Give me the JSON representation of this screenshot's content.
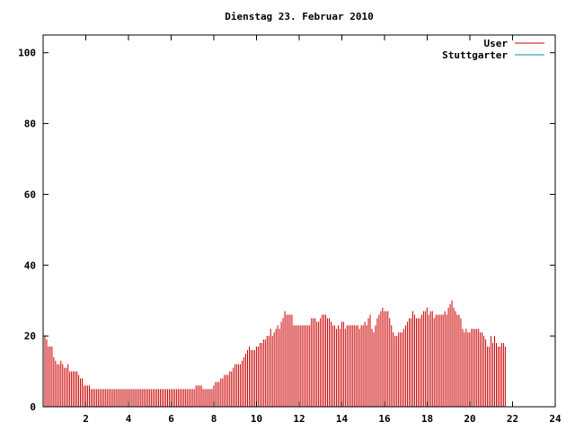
{
  "chart_data": {
    "type": "bar",
    "title": "Dienstag 23. Februar 2010",
    "xlabel": "",
    "ylabel": "",
    "xlim": [
      0,
      24
    ],
    "ylim": [
      0,
      105
    ],
    "x_ticks": [
      2,
      4,
      6,
      8,
      10,
      12,
      14,
      16,
      18,
      20,
      22,
      24
    ],
    "y_ticks": [
      0,
      20,
      40,
      60,
      80,
      100
    ],
    "grid": false,
    "legend_position": "top-right",
    "series": [
      {
        "name": "User",
        "color": "#cc0000",
        "x_start": 0,
        "x_step": 0.0833,
        "values": [
          20,
          20,
          19,
          17,
          17,
          17,
          14,
          13,
          12,
          12,
          13,
          12,
          11,
          11,
          12,
          10,
          10,
          10,
          10,
          10,
          9,
          8,
          8,
          6,
          6,
          6,
          6,
          5,
          5,
          5,
          5,
          5,
          5,
          5,
          5,
          5,
          5,
          5,
          5,
          5,
          5,
          5,
          5,
          5,
          5,
          5,
          5,
          5,
          5,
          5,
          5,
          5,
          5,
          5,
          5,
          5,
          5,
          5,
          5,
          5,
          5,
          5,
          5,
          5,
          5,
          5,
          5,
          5,
          5,
          5,
          5,
          5,
          5,
          5,
          5,
          5,
          5,
          5,
          5,
          5,
          5,
          5,
          5,
          5,
          5,
          5,
          6,
          6,
          6,
          6,
          5,
          5,
          5,
          5,
          5,
          5,
          6,
          7,
          7,
          7,
          8,
          8,
          9,
          9,
          9,
          10,
          10,
          11,
          12,
          12,
          12,
          12,
          13,
          14,
          15,
          16,
          17,
          16,
          16,
          16,
          17,
          17,
          18,
          18,
          19,
          19,
          20,
          20,
          22,
          20,
          21,
          22,
          23,
          22,
          24,
          25,
          27,
          26,
          26,
          26,
          26,
          23,
          23,
          23,
          23,
          23,
          23,
          23,
          23,
          23,
          23,
          25,
          25,
          25,
          24,
          24,
          25,
          26,
          26,
          26,
          25,
          25,
          24,
          23,
          23,
          22,
          23,
          22,
          24,
          24,
          22,
          23,
          23,
          23,
          23,
          23,
          23,
          23,
          22,
          23,
          23,
          24,
          23,
          25,
          26,
          22,
          21,
          23,
          25,
          26,
          27,
          28,
          27,
          27,
          27,
          25,
          23,
          21,
          20,
          20,
          21,
          21,
          21,
          22,
          23,
          24,
          25,
          25,
          27,
          26,
          25,
          25,
          25,
          26,
          27,
          27,
          28,
          26,
          27,
          27,
          25,
          26,
          26,
          26,
          26,
          26,
          27,
          26,
          28,
          29,
          30,
          28,
          27,
          26,
          26,
          25,
          22,
          21,
          22,
          21,
          21,
          22,
          22,
          22,
          22,
          22,
          21,
          21,
          20,
          19,
          17,
          17,
          20,
          18,
          20,
          18,
          17,
          17,
          18,
          18,
          17
        ]
      },
      {
        "name": "Stuttgarter",
        "color": "#009090",
        "values": []
      }
    ]
  }
}
